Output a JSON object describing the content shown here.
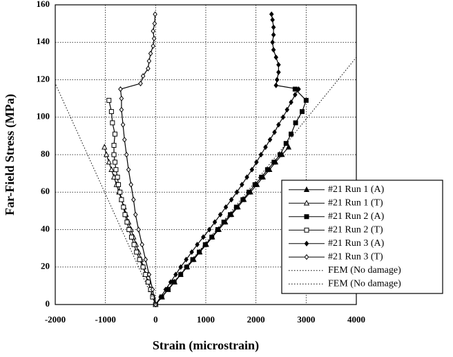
{
  "chart_data": {
    "type": "line",
    "xlabel": "Strain (microstrain)",
    "ylabel": "Far-Field Stress (MPa)",
    "xlim": [
      -2000,
      4000
    ],
    "xticks": [
      -2000,
      -1000,
      0,
      1000,
      2000,
      3000,
      4000
    ],
    "ylim": [
      0,
      160
    ],
    "yticks": [
      0,
      20,
      40,
      60,
      80,
      100,
      120,
      140,
      160
    ],
    "grid": true,
    "legend_position": "lower right",
    "series": [
      {
        "name": "#21 Run 1 (A)",
        "color": "#000000",
        "marker": "triangle",
        "filled": true,
        "linestyle": "solid",
        "x": [
          0,
          130,
          250,
          380,
          500,
          630,
          760,
          880,
          1010,
          1130,
          1260,
          1390,
          1510,
          1640,
          1760,
          1890,
          2020,
          2140,
          2270,
          2390,
          2520,
          2650
        ],
        "values": [
          0,
          4,
          8,
          12,
          16,
          20,
          24,
          28,
          32,
          36,
          40,
          44,
          48,
          52,
          56,
          60,
          64,
          68,
          72,
          76,
          80,
          84
        ]
      },
      {
        "name": "#21 Run 1 (T)",
        "color": "#000000",
        "marker": "triangle",
        "filled": false,
        "linestyle": "solid",
        "x": [
          0,
          -50,
          -100,
          -150,
          -200,
          -240,
          -290,
          -340,
          -390,
          -440,
          -490,
          -540,
          -590,
          -630,
          -680,
          -730,
          -780,
          -830,
          -880,
          -930,
          -980,
          -1020
        ],
        "values": [
          0,
          4,
          8,
          12,
          16,
          20,
          24,
          28,
          32,
          36,
          40,
          44,
          48,
          52,
          56,
          60,
          64,
          68,
          72,
          76,
          80,
          84
        ]
      },
      {
        "name": "#21 Run 2 (A)",
        "color": "#000000",
        "marker": "square",
        "filled": true,
        "linestyle": "solid",
        "x": [
          0,
          120,
          250,
          370,
          500,
          620,
          740,
          870,
          990,
          1120,
          1240,
          1360,
          1490,
          1610,
          1740,
          1860,
          1980,
          2110,
          2230,
          2360,
          2480,
          2600,
          2700,
          2790,
          2920,
          3000,
          2780
        ],
        "values": [
          0,
          4,
          8,
          12,
          16,
          20,
          24,
          28,
          32,
          36,
          40,
          44,
          48,
          52,
          56,
          60,
          64,
          68,
          72,
          76,
          80,
          86,
          91,
          97,
          103,
          109,
          115
        ]
      },
      {
        "name": "#21 Run 2 (T)",
        "color": "#000000",
        "marker": "square",
        "filled": false,
        "linestyle": "solid",
        "x": [
          0,
          -60,
          -100,
          -150,
          -200,
          -250,
          -320,
          -380,
          -430,
          -480,
          -530,
          -570,
          -610,
          -640,
          -680,
          -710,
          -740,
          -760,
          -790,
          -810,
          -830,
          -830,
          -810,
          -860,
          -880,
          -930
        ],
        "values": [
          0,
          4,
          8,
          12,
          16,
          20,
          24,
          28,
          32,
          36,
          40,
          44,
          48,
          52,
          56,
          60,
          64,
          68,
          72,
          76,
          80,
          85,
          91,
          97,
          103,
          109
        ]
      },
      {
        "name": "#21 Run 3 (A)",
        "color": "#000000",
        "marker": "diamond",
        "filled": true,
        "linestyle": "solid",
        "x": [
          0,
          100,
          200,
          300,
          400,
          500,
          610,
          720,
          830,
          950,
          1070,
          1180,
          1290,
          1400,
          1510,
          1620,
          1720,
          1820,
          1920,
          2010,
          2100,
          2190,
          2280,
          2370,
          2450,
          2540,
          2620,
          2700,
          2780,
          2850,
          2400,
          2420,
          2450,
          2450,
          2400,
          2350,
          2330,
          2350,
          2350,
          2330,
          2310
        ],
        "values": [
          0,
          4,
          8,
          12,
          16,
          20,
          24,
          28,
          32,
          36,
          40,
          44,
          48,
          52,
          56,
          60,
          64,
          68,
          72,
          76,
          80,
          84,
          88,
          92,
          96,
          100,
          104,
          108,
          112,
          115,
          117,
          120,
          124,
          128,
          132,
          136,
          140,
          144,
          148,
          152,
          155
        ]
      },
      {
        "name": "#21 Run 3 (T)",
        "color": "#000000",
        "marker": "diamond",
        "filled": false,
        "linestyle": "solid",
        "x": [
          0,
          -60,
          -130,
          -200,
          -270,
          -340,
          -400,
          -440,
          -490,
          -540,
          -580,
          -620,
          -650,
          -680,
          -680,
          -700,
          -300,
          -250,
          -150,
          -130,
          -100,
          -50,
          -30,
          -50,
          -20,
          -10
        ],
        "values": [
          0,
          8,
          16,
          24,
          32,
          40,
          48,
          56,
          64,
          72,
          80,
          88,
          96,
          104,
          110,
          115,
          118,
          122,
          126,
          130,
          134,
          138,
          142,
          146,
          150,
          155
        ]
      },
      {
        "name": "FEM (No damage)",
        "color": "#000000",
        "marker": "none",
        "filled": false,
        "linestyle": "dotted",
        "x": [
          0,
          4000
        ],
        "values": [
          0,
          132
        ]
      },
      {
        "name": "FEM (No damage)",
        "color": "#000000",
        "marker": "none",
        "filled": false,
        "linestyle": "dotted",
        "x": [
          0,
          -2000
        ],
        "values": [
          0,
          118
        ]
      }
    ]
  }
}
